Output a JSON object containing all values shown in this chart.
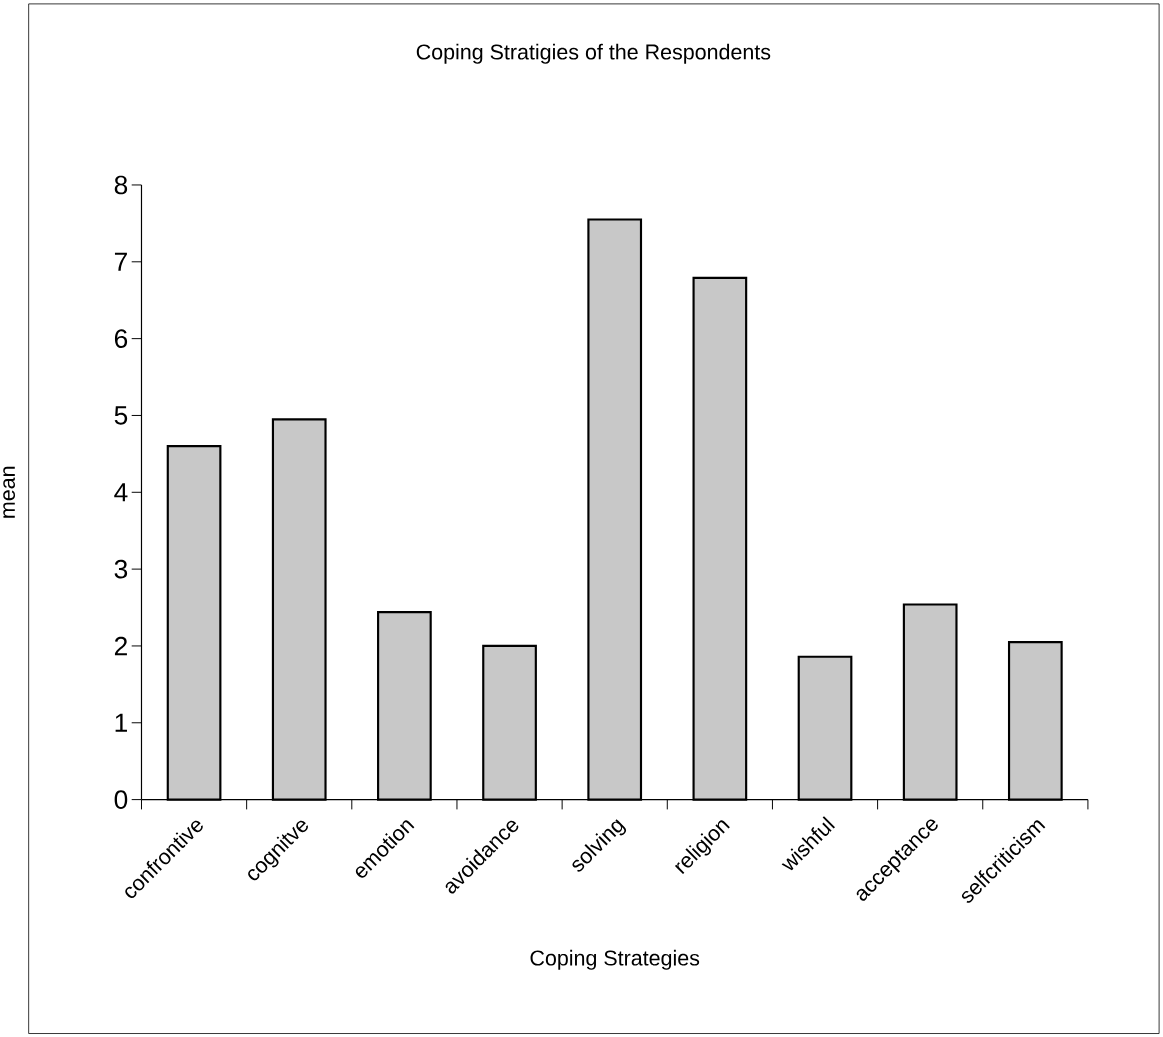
{
  "chart_data": {
    "type": "bar",
    "title": "Coping Stratigies of the Respondents",
    "xlabel": "Coping Strategies",
    "ylabel": "mean",
    "categories": [
      "confrontive",
      "cognitve",
      "emotion",
      "avoidance",
      "solving",
      "religion",
      "wishful",
      "acceptance",
      "selfcriticism"
    ],
    "values": [
      4.6,
      4.95,
      2.44,
      2.0,
      7.55,
      6.79,
      1.86,
      2.54,
      2.05
    ],
    "color": "#c8c8c8",
    "ylim": [
      0,
      8
    ],
    "yticks": [
      0,
      1,
      2,
      3,
      4,
      5,
      6,
      7,
      8
    ],
    "grid": false
  }
}
